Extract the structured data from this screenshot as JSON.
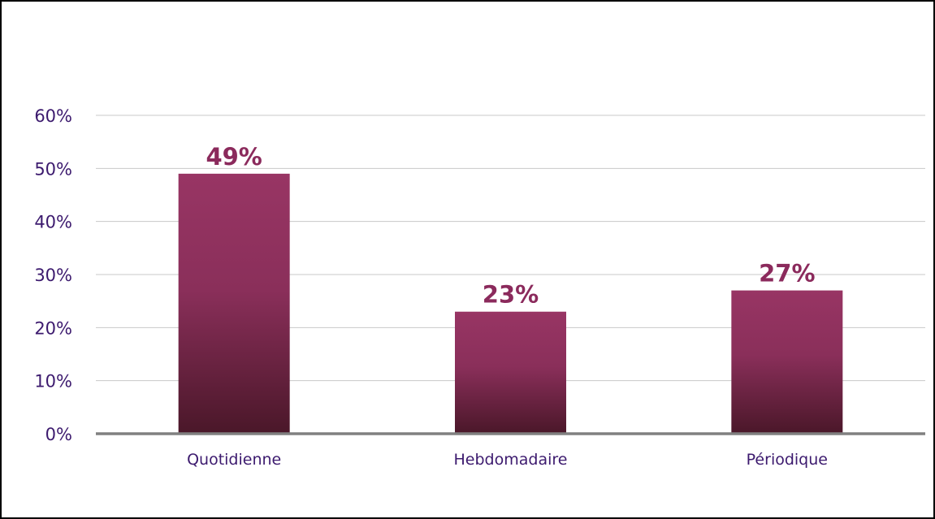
{
  "chart_data": {
    "type": "bar",
    "categories": [
      "Quotidienne",
      "Hebdomadaire",
      "Périodique"
    ],
    "values": [
      49,
      23,
      27
    ],
    "data_labels": [
      "49%",
      "23%",
      "27%"
    ],
    "y_tick_labels": [
      "0%",
      "10%",
      "20%",
      "30%",
      "40%",
      "50%",
      "60%"
    ],
    "y_ticks": [
      0,
      10,
      20,
      30,
      40,
      50,
      60
    ],
    "ylim": [
      0,
      60
    ],
    "grid": true,
    "legend": "none",
    "title": "",
    "xlabel": "",
    "ylabel": ""
  },
  "colors": {
    "bar_top": "#983564",
    "bar_bottom": "#4a1729",
    "data_label": "#8b2a5c",
    "axis_text": "#3c1a6e",
    "gridline": "#c8c8c8",
    "baseline": "#808080"
  }
}
